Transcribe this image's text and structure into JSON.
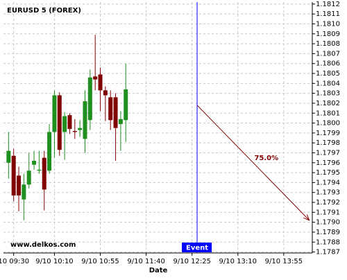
{
  "chart_data": {
    "type": "candlestick",
    "title": "EURUSD 5 (FOREX)",
    "x_label": "Date",
    "watermark": "www.delkos.com",
    "up_color": "#1f8f1f",
    "down_color": "#800000",
    "grid": true,
    "x": [
      565,
      570,
      575,
      580,
      585,
      590,
      595,
      600,
      605,
      610,
      615,
      620,
      625,
      630,
      635,
      640,
      645,
      650,
      655,
      660,
      665,
      670,
      675,
      680
    ],
    "open": [
      1.1796,
      1.17967,
      1.17947,
      1.17923,
      1.17938,
      1.17958,
      1.17952,
      1.17965,
      1.17952,
      1.17991,
      1.18028,
      1.17991,
      1.18008,
      1.17992,
      1.17993,
      1.17984,
      1.18003,
      1.18047,
      1.18049,
      1.18033,
      1.18026,
      1.18026,
      1.17999,
      1.18003
    ],
    "high": [
      1.17991,
      1.17974,
      1.17956,
      1.17949,
      1.1797,
      1.17972,
      1.17972,
      1.17972,
      1.17999,
      1.18033,
      1.18031,
      1.18011,
      1.1801,
      1.18004,
      1.18003,
      1.18033,
      1.18054,
      1.18089,
      1.18056,
      1.18037,
      1.18033,
      1.1803,
      1.18012,
      1.1806
    ],
    "low": [
      1.17944,
      1.17921,
      1.17911,
      1.17902,
      1.17934,
      1.17953,
      1.17949,
      1.17912,
      1.17949,
      1.17965,
      1.17967,
      1.17963,
      1.17989,
      1.17984,
      1.17986,
      1.1797,
      1.17993,
      1.18033,
      1.18012,
      1.18002,
      1.17993,
      1.17962,
      1.17972,
      1.17981
    ],
    "close": [
      1.17972,
      1.17927,
      1.17927,
      1.17938,
      1.17952,
      1.17962,
      1.17953,
      1.17933,
      1.17991,
      1.18028,
      1.17973,
      1.18007,
      1.17994,
      1.17991,
      1.17995,
      1.18022,
      1.18046,
      1.18044,
      1.18033,
      1.18028,
      1.18003,
      1.17995,
      1.18004,
      1.18034
    ],
    "xlim": [
      560,
      863
    ],
    "xticks": [
      {
        "value": 570,
        "label": "10 09:30"
      },
      {
        "value": 610,
        "label": "9/10 10:10"
      },
      {
        "value": 655,
        "label": "9/10 10:55"
      },
      {
        "value": 700,
        "label": "9/10 11:40"
      },
      {
        "value": 745,
        "label": "9/10 12:25"
      },
      {
        "value": 790,
        "label": "9/10 13:10"
      },
      {
        "value": 835,
        "label": "9/10 13:55"
      }
    ],
    "ylim": [
      1.17869,
      1.18122
    ],
    "yticks": [
      1.1787,
      1.1788,
      1.1789,
      {
        "value": 1.179,
        "label": "1.1790"
      },
      1.1791,
      1.1792,
      1.1793,
      1.1794,
      1.1795,
      1.1796,
      1.1797,
      1.1798,
      1.1799,
      {
        "value": 1.18,
        "label": "1.1800"
      },
      1.1801,
      1.1802,
      1.1803,
      1.1804,
      1.1805,
      1.1806,
      1.1807,
      1.1808,
      1.1809,
      {
        "value": 1.181,
        "label": "1.1810"
      },
      1.1811,
      1.1812
    ],
    "event": {
      "x": 750,
      "label": "Event",
      "color": "#0000ff"
    },
    "arrow": {
      "x1": 750,
      "y1": 1.18018,
      "x2": 860,
      "y2": 1.17902,
      "label": "75.0%",
      "color": "#800000"
    }
  }
}
